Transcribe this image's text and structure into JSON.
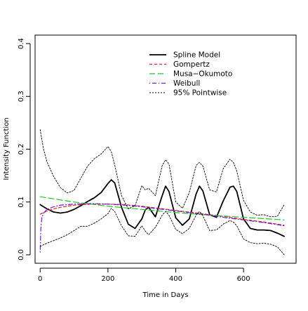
{
  "chart_data": {
    "type": "line",
    "title": "",
    "xlabel": "Time in Days",
    "ylabel": "Intensity Function",
    "xlim": [
      -15,
      755
    ],
    "ylim": [
      -0.016,
      0.416
    ],
    "x_ticks": [
      0,
      200,
      400,
      600
    ],
    "y_ticks": [
      0.0,
      0.1,
      0.2,
      0.3,
      0.4
    ],
    "x_tick_labels": [
      "0",
      "200",
      "400",
      "600"
    ],
    "y_tick_labels": [
      "0.0",
      "0.1",
      "0.2",
      "0.3",
      "0.4"
    ],
    "grid": false,
    "legend_position": "top-right",
    "series": [
      {
        "name": "Spline Model",
        "color": "#000000",
        "style": "solid",
        "x": [
          0,
          20,
          40,
          60,
          80,
          100,
          120,
          140,
          160,
          180,
          200,
          210,
          220,
          240,
          260,
          280,
          300,
          310,
          320,
          340,
          360,
          370,
          380,
          400,
          420,
          440,
          460,
          470,
          480,
          500,
          520,
          540,
          560,
          570,
          580,
          600,
          620,
          640,
          660,
          680,
          700,
          720
        ],
        "y": [
          0.095,
          0.087,
          0.081,
          0.079,
          0.081,
          0.086,
          0.093,
          0.101,
          0.108,
          0.118,
          0.135,
          0.142,
          0.136,
          0.09,
          0.058,
          0.05,
          0.068,
          0.085,
          0.09,
          0.072,
          0.112,
          0.13,
          0.12,
          0.07,
          0.056,
          0.068,
          0.115,
          0.13,
          0.121,
          0.076,
          0.071,
          0.102,
          0.128,
          0.13,
          0.12,
          0.068,
          0.05,
          0.047,
          0.047,
          0.046,
          0.041,
          0.035
        ]
      },
      {
        "name": "Gompertz",
        "color": "#e0232b",
        "style": "dashed",
        "x": [
          0,
          20,
          40,
          60,
          80,
          100,
          150,
          200,
          250,
          300,
          350,
          400,
          450,
          500,
          550,
          600,
          650,
          700,
          720
        ],
        "y": [
          0.077,
          0.083,
          0.087,
          0.09,
          0.092,
          0.094,
          0.096,
          0.096,
          0.095,
          0.092,
          0.088,
          0.084,
          0.08,
          0.076,
          0.072,
          0.067,
          0.063,
          0.058,
          0.056
        ]
      },
      {
        "name": "Musa−Okumoto",
        "color": "#17c727",
        "style": "longdash",
        "x": [
          0,
          100,
          200,
          300,
          400,
          500,
          600,
          720
        ],
        "y": [
          0.11,
          0.1,
          0.092,
          0.086,
          0.08,
          0.075,
          0.071,
          0.066
        ]
      },
      {
        "name": "Weibull",
        "color": "#6b1fd6",
        "style": "dotdash",
        "x": [
          0,
          2,
          5,
          10,
          20,
          40,
          60,
          80,
          100,
          150,
          200,
          250,
          300,
          350,
          400,
          450,
          500,
          550,
          600,
          650,
          700,
          720
        ],
        "y": [
          0.005,
          0.05,
          0.07,
          0.079,
          0.086,
          0.091,
          0.094,
          0.095,
          0.096,
          0.097,
          0.096,
          0.094,
          0.091,
          0.087,
          0.083,
          0.079,
          0.075,
          0.07,
          0.066,
          0.062,
          0.057,
          0.055
        ]
      },
      {
        "name": "95% Pointwise",
        "color": "#000000",
        "style": "dotted",
        "x": [
          0,
          10,
          20,
          40,
          60,
          80,
          100,
          120,
          140,
          160,
          180,
          200,
          210,
          220,
          240,
          260,
          280,
          300,
          310,
          320,
          340,
          360,
          370,
          380,
          400,
          420,
          440,
          460,
          470,
          480,
          500,
          520,
          540,
          560,
          570,
          580,
          600,
          620,
          640,
          660,
          680,
          700,
          720
        ],
        "y": [
          0.237,
          0.2,
          0.176,
          0.148,
          0.127,
          0.117,
          0.122,
          0.145,
          0.168,
          0.182,
          0.191,
          0.205,
          0.195,
          0.17,
          0.112,
          0.087,
          0.093,
          0.131,
          0.123,
          0.126,
          0.112,
          0.169,
          0.18,
          0.172,
          0.1,
          0.088,
          0.118,
          0.169,
          0.175,
          0.168,
          0.123,
          0.119,
          0.163,
          0.181,
          0.175,
          0.159,
          0.103,
          0.081,
          0.075,
          0.076,
          0.072,
          0.073,
          0.095
        ]
      },
      {
        "name": "95% Pointwise lower",
        "legend": false,
        "color": "#000000",
        "style": "dotted",
        "x": [
          0,
          20,
          40,
          60,
          80,
          100,
          120,
          140,
          160,
          180,
          200,
          210,
          220,
          240,
          260,
          280,
          300,
          310,
          320,
          340,
          360,
          370,
          380,
          400,
          420,
          440,
          460,
          470,
          480,
          500,
          520,
          540,
          560,
          570,
          580,
          600,
          620,
          640,
          660,
          680,
          700,
          720
        ],
        "y": [
          0.016,
          0.022,
          0.027,
          0.032,
          0.038,
          0.046,
          0.054,
          0.054,
          0.06,
          0.068,
          0.078,
          0.088,
          0.082,
          0.055,
          0.036,
          0.035,
          0.055,
          0.045,
          0.038,
          0.052,
          0.075,
          0.082,
          0.075,
          0.048,
          0.04,
          0.05,
          0.075,
          0.082,
          0.074,
          0.046,
          0.047,
          0.058,
          0.065,
          0.062,
          0.055,
          0.03,
          0.023,
          0.021,
          0.022,
          0.02,
          0.015,
          0.0
        ]
      }
    ]
  }
}
